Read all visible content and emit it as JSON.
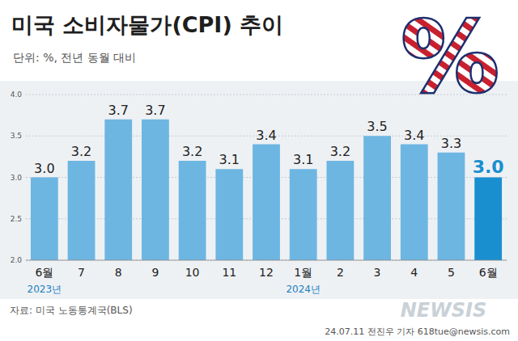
{
  "chart_data": {
    "type": "bar",
    "title": "미국 소비자물가(CPI) 추이",
    "subtitle": "단위: %, 전년 동월 대비",
    "icon_text": "%",
    "categories": [
      "6월",
      "7",
      "8",
      "9",
      "10",
      "11",
      "12",
      "1월",
      "2",
      "3",
      "4",
      "5",
      "6월"
    ],
    "values": [
      3.0,
      3.2,
      3.7,
      3.7,
      3.2,
      3.1,
      3.4,
      3.1,
      3.2,
      3.5,
      3.4,
      3.3,
      3.0
    ],
    "value_labels": [
      "3.0",
      "3.2",
      "3.7",
      "3.7",
      "3.2",
      "3.1",
      "3.4",
      "3.1",
      "3.2",
      "3.5",
      "3.4",
      "3.3",
      "3.0"
    ],
    "color": "#6db6e2",
    "colors": [
      "#6db6e2",
      "#6db6e2",
      "#6db6e2",
      "#6db6e2",
      "#6db6e2",
      "#6db6e2",
      "#6db6e2",
      "#6db6e2",
      "#6db6e2",
      "#6db6e2",
      "#6db6e2",
      "#6db6e2",
      "#1a8fd0"
    ],
    "ylim": [
      2.0,
      4.0
    ],
    "yticks": [
      {
        "value": 2,
        "label": "2.0"
      },
      2.5,
      {
        "value": 3,
        "label": "3.0"
      },
      3.5,
      {
        "value": 4,
        "label": "4.0"
      }
    ],
    "grid": true,
    "data_labels": true,
    "annotations": [
      {
        "text": "2023년",
        "index": 0
      },
      {
        "text": "2024년",
        "index": 7
      }
    ],
    "source": "자료: 미국 노동통계국(BLS)",
    "credit": "24.07.11 전진우 기자 618tue@newsis.com",
    "watermark": "NEWSIS"
  }
}
